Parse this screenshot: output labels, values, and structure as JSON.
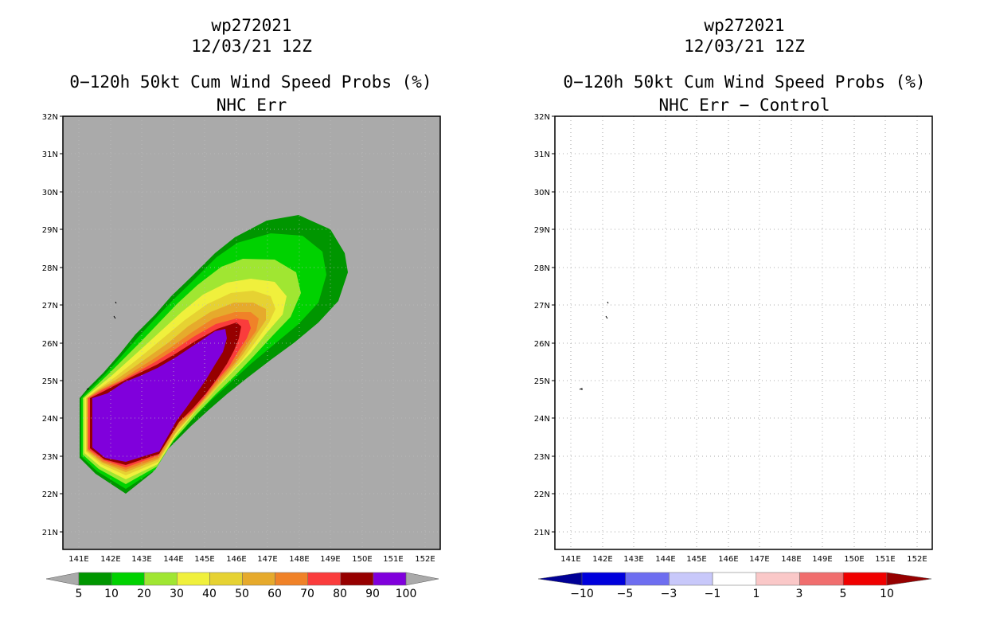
{
  "left_panel": {
    "storm_id": "wp272021",
    "datetime": "12/03/21 12Z",
    "product": "0−120h 50kt Cum Wind Speed Probs (%)",
    "subtitle": "NHC Err",
    "lat_labels": [
      "32N",
      "31N",
      "30N",
      "29N",
      "28N",
      "27N",
      "26N",
      "25N",
      "24N",
      "23N",
      "22N",
      "21N"
    ],
    "lon_labels": [
      "141E",
      "142E",
      "143E",
      "144E",
      "145E",
      "146E",
      "147E",
      "148E",
      "149E",
      "150E",
      "151E",
      "152E"
    ],
    "colorbar_labels": [
      "5",
      "10",
      "20",
      "30",
      "40",
      "50",
      "60",
      "70",
      "80",
      "90",
      "100"
    ],
    "colorbar_colors": [
      "#009600",
      "#00d200",
      "#a0e632",
      "#f0f03c",
      "#e6d232",
      "#e6aa2c",
      "#f08228",
      "#fa3c3c",
      "#960000",
      "#8000dc"
    ],
    "background_color": "#aaaaaa"
  },
  "right_panel": {
    "storm_id": "wp272021",
    "datetime": "12/03/21 12Z",
    "product": "0−120h 50kt Cum Wind Speed Probs (%)",
    "subtitle": "NHC Err − Control",
    "lat_labels": [
      "32N",
      "31N",
      "30N",
      "29N",
      "28N",
      "27N",
      "26N",
      "25N",
      "24N",
      "23N",
      "22N",
      "21N"
    ],
    "lon_labels": [
      "141E",
      "142E",
      "143E",
      "144E",
      "145E",
      "146E",
      "147E",
      "148E",
      "149E",
      "150E",
      "151E",
      "152E"
    ],
    "colorbar_labels": [
      "−10",
      "−5",
      "−3",
      "−1",
      "1",
      "3",
      "5",
      "10"
    ],
    "colorbar_colors": [
      "#0000dc",
      "#6e6ef0",
      "#c8c8fa",
      "#ffffff",
      "#fac8c8",
      "#f06e6e",
      "#f00000"
    ],
    "colorbar_end_colors": [
      "#000096",
      "#960000"
    ]
  }
}
